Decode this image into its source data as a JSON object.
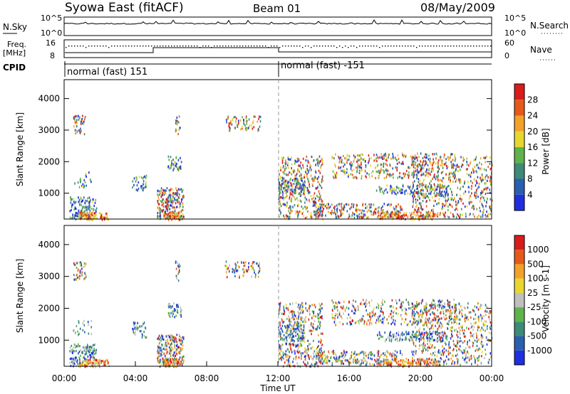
{
  "header": {
    "left_title": "Syowa East (fitACF)",
    "center_title": "Beam 01",
    "date": "08/May/2009"
  },
  "status_panels": {
    "nsky_label": "N.Sky",
    "nsearch_label": "N.Search",
    "freq_label_top": "Freq.",
    "freq_label_unit": "[MHz]",
    "nave_label": "Nave",
    "cpid_label": "CPID",
    "left_ticks_noise": [
      "10^5",
      "10^0"
    ],
    "right_ticks_noise": [
      "10^5",
      "10^0"
    ],
    "left_ticks_freq": [
      "16",
      "8"
    ],
    "right_ticks_nave": [
      "60",
      "0"
    ],
    "cpid_segments": [
      {
        "label": "normal (fast) 151",
        "start_hour": 0,
        "end_hour": 12
      },
      {
        "label": "normal (fast) -151",
        "start_hour": 12,
        "end_hour": 24
      }
    ]
  },
  "chart_data": [
    {
      "type": "heatmap",
      "title": "",
      "xlabel": "",
      "ylabel": "Slant Range [km]",
      "xlim": [
        0,
        24
      ],
      "ylim": [
        180,
        4600
      ],
      "yticks": [
        "1000",
        "2000",
        "3000",
        "4000"
      ],
      "colorbar": {
        "label": "Power [dB]",
        "ticks": [
          "4",
          "8",
          "12",
          "16",
          "20",
          "24",
          "28"
        ],
        "colors": [
          "#1f2fe0",
          "#2a5fb0",
          "#3d8a78",
          "#5fb34a",
          "#e7d630",
          "#f2a12a",
          "#e55a1a",
          "#d81c1c"
        ]
      }
    },
    {
      "type": "heatmap",
      "title": "",
      "xlabel": "Time UT",
      "ylabel": "Slant Range [km]",
      "xlim": [
        0,
        24
      ],
      "ylim": [
        180,
        4600
      ],
      "xticks": [
        "00:00",
        "04:00",
        "08:00",
        "12:00",
        "16:00",
        "20:00",
        "00:00"
      ],
      "yticks": [
        "1000",
        "2000",
        "3000",
        "4000"
      ],
      "colorbar": {
        "label": "Velocity [m s-1]",
        "ticks": [
          "1000",
          "500",
          "100",
          "25",
          "-25",
          "-100",
          "-500",
          "-1000"
        ],
        "colors": [
          "#1f2fe0",
          "#2a5fb0",
          "#3d8a78",
          "#5fb34a",
          "#bfbfbf",
          "#e7d630",
          "#f2a12a",
          "#e55a1a",
          "#d81c1c"
        ]
      }
    }
  ]
}
